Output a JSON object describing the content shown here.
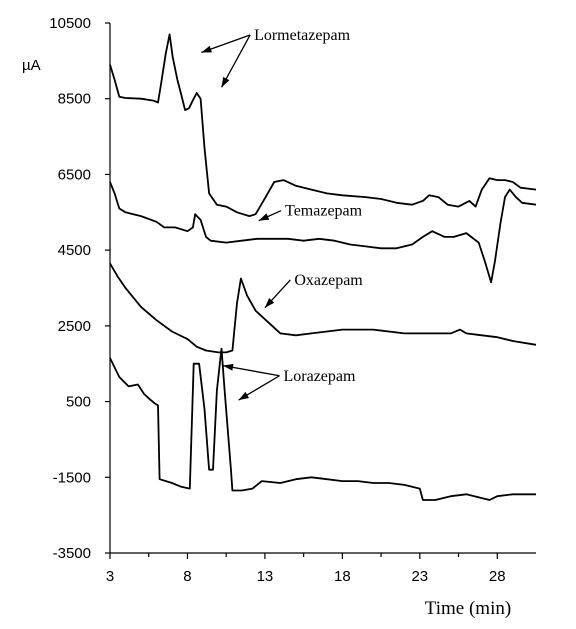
{
  "chart_data": {
    "type": "line",
    "ylabel": "µA",
    "xlabel": "Time (min)",
    "xlim": [
      3,
      30.5
    ],
    "ylim": [
      -3500,
      10500
    ],
    "x_ticks": [
      3,
      8,
      13,
      18,
      23,
      28
    ],
    "y_ticks": [
      10500,
      8500,
      6500,
      4500,
      2500,
      500,
      -1500,
      -3500
    ],
    "grid": false,
    "series": [
      {
        "name": "Lormetazepam",
        "points": [
          [
            3,
            9400
          ],
          [
            3.3,
            9000
          ],
          [
            3.6,
            8550
          ],
          [
            4,
            8520
          ],
          [
            5,
            8500
          ],
          [
            5.8,
            8450
          ],
          [
            6.1,
            8400
          ],
          [
            6.3,
            8900
          ],
          [
            6.6,
            9700
          ],
          [
            6.85,
            10200
          ],
          [
            7.05,
            9600
          ],
          [
            7.35,
            9000
          ],
          [
            7.6,
            8600
          ],
          [
            7.85,
            8200
          ],
          [
            8.1,
            8250
          ],
          [
            8.4,
            8500
          ],
          [
            8.6,
            8650
          ],
          [
            8.85,
            8500
          ],
          [
            9.1,
            7200
          ],
          [
            9.4,
            6000
          ],
          [
            9.9,
            5700
          ],
          [
            10.5,
            5650
          ],
          [
            11.2,
            5500
          ],
          [
            12,
            5400
          ],
          [
            12.4,
            5450
          ],
          [
            12.9,
            5800
          ],
          [
            13.6,
            6300
          ],
          [
            14.2,
            6350
          ],
          [
            15,
            6200
          ],
          [
            16,
            6100
          ],
          [
            17,
            6000
          ],
          [
            18,
            5950
          ],
          [
            19.5,
            5900
          ],
          [
            20.5,
            5850
          ],
          [
            21.5,
            5750
          ],
          [
            22.5,
            5700
          ],
          [
            23.2,
            5800
          ],
          [
            23.6,
            5950
          ],
          [
            24.2,
            5900
          ],
          [
            24.8,
            5700
          ],
          [
            25.5,
            5650
          ],
          [
            26.2,
            5800
          ],
          [
            26.6,
            5650
          ],
          [
            27,
            6100
          ],
          [
            27.5,
            6400
          ],
          [
            28,
            6350
          ],
          [
            28.5,
            6350
          ],
          [
            29,
            6300
          ],
          [
            29.5,
            6150
          ],
          [
            30.5,
            6100
          ]
        ]
      },
      {
        "name": "Temazepam",
        "points": [
          [
            3,
            6300
          ],
          [
            3.3,
            6000
          ],
          [
            3.6,
            5600
          ],
          [
            4,
            5500
          ],
          [
            5,
            5400
          ],
          [
            6,
            5250
          ],
          [
            6.5,
            5100
          ],
          [
            7.2,
            5100
          ],
          [
            8,
            5000
          ],
          [
            8.35,
            5100
          ],
          [
            8.5,
            5450
          ],
          [
            8.85,
            5300
          ],
          [
            9.2,
            4850
          ],
          [
            9.5,
            4750
          ],
          [
            10.5,
            4700
          ],
          [
            11.5,
            4750
          ],
          [
            12.5,
            4800
          ],
          [
            13.5,
            4800
          ],
          [
            14.5,
            4800
          ],
          [
            15.5,
            4750
          ],
          [
            16.5,
            4800
          ],
          [
            17.5,
            4750
          ],
          [
            18.5,
            4650
          ],
          [
            19.5,
            4600
          ],
          [
            20.5,
            4550
          ],
          [
            21.5,
            4550
          ],
          [
            22.5,
            4650
          ],
          [
            23.2,
            4850
          ],
          [
            23.8,
            5000
          ],
          [
            24.6,
            4850
          ],
          [
            25.2,
            4850
          ],
          [
            26,
            4950
          ],
          [
            26.8,
            4700
          ],
          [
            27.2,
            4200
          ],
          [
            27.6,
            3650
          ],
          [
            27.85,
            4200
          ],
          [
            28.2,
            5200
          ],
          [
            28.5,
            5900
          ],
          [
            28.8,
            6100
          ],
          [
            29.2,
            5900
          ],
          [
            29.6,
            5750
          ],
          [
            30.5,
            5700
          ]
        ]
      },
      {
        "name": "Oxazepam",
        "points": [
          [
            3,
            4150
          ],
          [
            3.5,
            3800
          ],
          [
            4,
            3500
          ],
          [
            5,
            3000
          ],
          [
            6,
            2650
          ],
          [
            7,
            2350
          ],
          [
            8,
            2150
          ],
          [
            8.6,
            1950
          ],
          [
            9.2,
            1850
          ],
          [
            10,
            1800
          ],
          [
            10.5,
            1800
          ],
          [
            10.9,
            1850
          ],
          [
            11.2,
            3100
          ],
          [
            11.45,
            3750
          ],
          [
            11.85,
            3300
          ],
          [
            12.4,
            2900
          ],
          [
            13.2,
            2600
          ],
          [
            14,
            2300
          ],
          [
            15,
            2250
          ],
          [
            16,
            2300
          ],
          [
            17,
            2350
          ],
          [
            18,
            2400
          ],
          [
            19,
            2400
          ],
          [
            20,
            2400
          ],
          [
            21,
            2350
          ],
          [
            22,
            2300
          ],
          [
            23,
            2300
          ],
          [
            24,
            2300
          ],
          [
            25,
            2300
          ],
          [
            25.6,
            2400
          ],
          [
            26,
            2300
          ],
          [
            27,
            2250
          ],
          [
            28,
            2200
          ],
          [
            29,
            2100
          ],
          [
            30.5,
            2000
          ]
        ]
      },
      {
        "name": "Lorazepam",
        "points": [
          [
            3,
            1650
          ],
          [
            3.6,
            1150
          ],
          [
            4.2,
            900
          ],
          [
            4.8,
            950
          ],
          [
            5.2,
            700
          ],
          [
            5.6,
            550
          ],
          [
            5.9,
            450
          ],
          [
            6.1,
            400
          ],
          [
            6.2,
            -1550
          ],
          [
            7,
            -1650
          ],
          [
            7.6,
            -1750
          ],
          [
            8.15,
            -1800
          ],
          [
            8.4,
            1500
          ],
          [
            8.75,
            1500
          ],
          [
            9.1,
            300
          ],
          [
            9.4,
            -1300
          ],
          [
            9.65,
            -1300
          ],
          [
            9.9,
            800
          ],
          [
            10.2,
            1900
          ],
          [
            10.4,
            800
          ],
          [
            10.8,
            -1250
          ],
          [
            10.9,
            -1850
          ],
          [
            11.5,
            -1850
          ],
          [
            12.2,
            -1800
          ],
          [
            12.8,
            -1600
          ],
          [
            14,
            -1650
          ],
          [
            15,
            -1550
          ],
          [
            16,
            -1500
          ],
          [
            17,
            -1550
          ],
          [
            18,
            -1600
          ],
          [
            19,
            -1600
          ],
          [
            20,
            -1650
          ],
          [
            21,
            -1650
          ],
          [
            22,
            -1700
          ],
          [
            23,
            -1800
          ],
          [
            23.2,
            -2100
          ],
          [
            24,
            -2100
          ],
          [
            25,
            -2000
          ],
          [
            26,
            -1950
          ],
          [
            27.5,
            -2100
          ],
          [
            28,
            -2000
          ],
          [
            29,
            -1950
          ],
          [
            30.5,
            -1950
          ]
        ]
      }
    ],
    "annotations": [
      {
        "text": "Lormetazepam",
        "x": 12.3,
        "y": 10050,
        "arrow_targets": [
          [
            8.9,
            9720
          ],
          [
            10.2,
            8800
          ]
        ]
      },
      {
        "text": "Temazepam",
        "x": 14.3,
        "y": 5410,
        "arrow_targets": [
          [
            12.6,
            5280
          ]
        ]
      },
      {
        "text": "Oxazepam",
        "x": 14.9,
        "y": 3580,
        "arrow_targets": [
          [
            13.0,
            2980
          ]
        ]
      },
      {
        "text": "Lorazepam",
        "x": 14.2,
        "y": 1050,
        "arrow_targets": [
          [
            10.3,
            1450
          ],
          [
            11.3,
            540
          ]
        ]
      }
    ]
  }
}
